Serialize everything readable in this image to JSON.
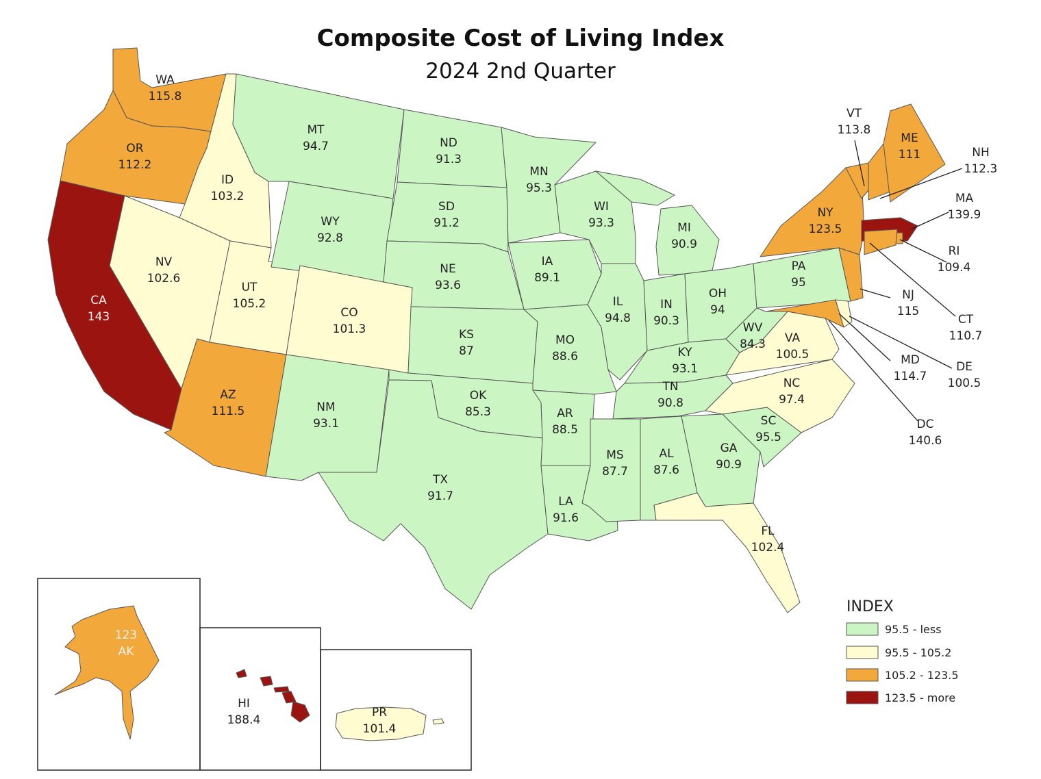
{
  "title": "Composite Cost of Living Index",
  "subtitle": "2024 2nd Quarter",
  "colors": {
    "low": "#ccf5c4",
    "mid": "#fefcd0",
    "high": "#f3a83b",
    "top": "#9b1410"
  },
  "legend": {
    "title": "INDEX",
    "items": [
      {
        "label": "95.5 - less",
        "color_key": "low"
      },
      {
        "label": "95.5 - 105.2",
        "color_key": "mid"
      },
      {
        "label": "105.2 - 123.5",
        "color_key": "high"
      },
      {
        "label": "123.5 - more",
        "color_key": "top"
      }
    ]
  },
  "states": {
    "WA": {
      "abbr": "WA",
      "value": "115.8",
      "color_key": "high"
    },
    "OR": {
      "abbr": "OR",
      "value": "112.2",
      "color_key": "high"
    },
    "CA": {
      "abbr": "CA",
      "value": "143",
      "color_key": "top"
    },
    "ID": {
      "abbr": "ID",
      "value": "103.2",
      "color_key": "mid"
    },
    "NV": {
      "abbr": "NV",
      "value": "102.6",
      "color_key": "mid"
    },
    "UT": {
      "abbr": "UT",
      "value": "105.2",
      "color_key": "mid"
    },
    "AZ": {
      "abbr": "AZ",
      "value": "111.5",
      "color_key": "high"
    },
    "MT": {
      "abbr": "MT",
      "value": "94.7",
      "color_key": "low"
    },
    "WY": {
      "abbr": "WY",
      "value": "92.8",
      "color_key": "low"
    },
    "CO": {
      "abbr": "CO",
      "value": "101.3",
      "color_key": "mid"
    },
    "NM": {
      "abbr": "NM",
      "value": "93.1",
      "color_key": "low"
    },
    "ND": {
      "abbr": "ND",
      "value": "91.3",
      "color_key": "low"
    },
    "SD": {
      "abbr": "SD",
      "value": "91.2",
      "color_key": "low"
    },
    "NE": {
      "abbr": "NE",
      "value": "93.6",
      "color_key": "low"
    },
    "KS": {
      "abbr": "KS",
      "value": "87",
      "color_key": "low"
    },
    "OK": {
      "abbr": "OK",
      "value": "85.3",
      "color_key": "low"
    },
    "TX": {
      "abbr": "TX",
      "value": "91.7",
      "color_key": "low"
    },
    "MN": {
      "abbr": "MN",
      "value": "95.3",
      "color_key": "low"
    },
    "IA": {
      "abbr": "IA",
      "value": "89.1",
      "color_key": "low"
    },
    "MO": {
      "abbr": "MO",
      "value": "88.6",
      "color_key": "low"
    },
    "AR": {
      "abbr": "AR",
      "value": "88.5",
      "color_key": "low"
    },
    "LA": {
      "abbr": "LA",
      "value": "91.6",
      "color_key": "low"
    },
    "WI": {
      "abbr": "WI",
      "value": "93.3",
      "color_key": "low"
    },
    "IL": {
      "abbr": "IL",
      "value": "94.8",
      "color_key": "low"
    },
    "MI": {
      "abbr": "MI",
      "value": "90.9",
      "color_key": "low"
    },
    "IN": {
      "abbr": "IN",
      "value": "90.3",
      "color_key": "low"
    },
    "OH": {
      "abbr": "OH",
      "value": "94",
      "color_key": "low"
    },
    "KY": {
      "abbr": "KY",
      "value": "93.1",
      "color_key": "low"
    },
    "TN": {
      "abbr": "TN",
      "value": "90.8",
      "color_key": "low"
    },
    "MS": {
      "abbr": "MS",
      "value": "87.7",
      "color_key": "low"
    },
    "AL": {
      "abbr": "AL",
      "value": "87.6",
      "color_key": "low"
    },
    "GA": {
      "abbr": "GA",
      "value": "90.9",
      "color_key": "low"
    },
    "FL": {
      "abbr": "FL",
      "value": "102.4",
      "color_key": "mid"
    },
    "SC": {
      "abbr": "SC",
      "value": "95.5",
      "color_key": "low"
    },
    "NC": {
      "abbr": "NC",
      "value": "97.4",
      "color_key": "mid"
    },
    "VA": {
      "abbr": "VA",
      "value": "100.5",
      "color_key": "mid"
    },
    "WV": {
      "abbr": "WV",
      "value": "84.3",
      "color_key": "low"
    },
    "PA": {
      "abbr": "PA",
      "value": "95",
      "color_key": "low"
    },
    "NY": {
      "abbr": "NY",
      "value": "123.5",
      "color_key": "high"
    },
    "VT": {
      "abbr": "VT",
      "value": "113.8",
      "color_key": "high"
    },
    "ME": {
      "abbr": "ME",
      "value": "111",
      "color_key": "high"
    },
    "NH": {
      "abbr": "NH",
      "value": "112.3",
      "color_key": "high"
    },
    "MA": {
      "abbr": "MA",
      "value": "139.9",
      "color_key": "top"
    },
    "RI": {
      "abbr": "RI",
      "value": "109.4",
      "color_key": "high"
    },
    "CT": {
      "abbr": "CT",
      "value": "110.7",
      "color_key": "high"
    },
    "NJ": {
      "abbr": "NJ",
      "value": "115",
      "color_key": "high"
    },
    "DE": {
      "abbr": "DE",
      "value": "100.5",
      "color_key": "mid"
    },
    "MD": {
      "abbr": "MD",
      "value": "114.7",
      "color_key": "high"
    },
    "DC": {
      "abbr": "DC",
      "value": "140.6",
      "color_key": "top"
    },
    "AK": {
      "abbr": "AK",
      "value": "123",
      "color_key": "high"
    },
    "HI": {
      "abbr": "HI",
      "value": "188.4",
      "color_key": "top"
    },
    "PR": {
      "abbr": "PR",
      "value": "101.4",
      "color_key": "mid"
    }
  }
}
